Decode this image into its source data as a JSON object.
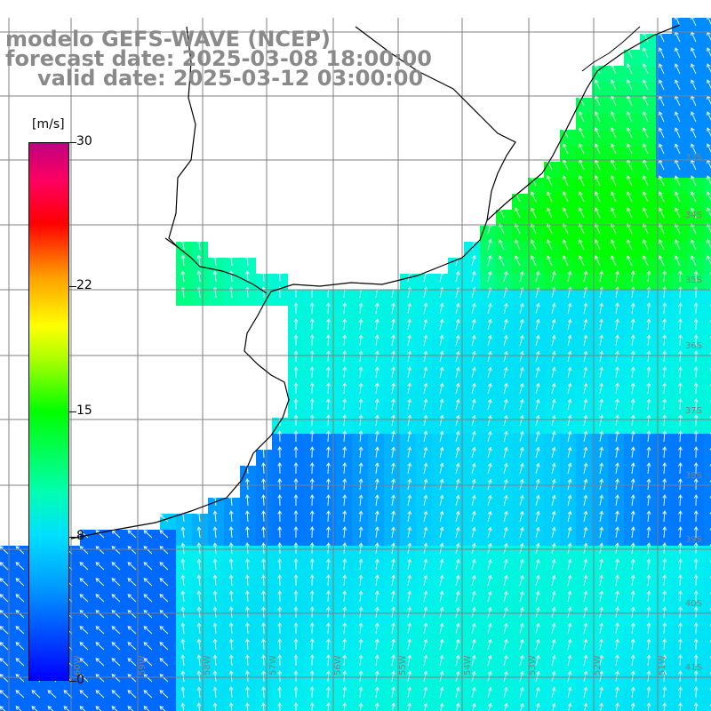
{
  "header": {
    "model_line": "modelo GEFS-WAVE (NCEP)",
    "forecast_line": "forecast date: 2025-03-08 18:00:00",
    "valid_line": "valid date: 2025-03-12 03:00:00"
  },
  "colorbar": {
    "unit": "[m/s]",
    "ticks": [
      {
        "label": "30",
        "value": 30
      },
      {
        "label": "22",
        "value": 22
      },
      {
        "label": "15",
        "value": 15
      },
      {
        "label": "8",
        "value": 8
      },
      {
        "label": "0",
        "value": 0
      }
    ],
    "range": [
      0,
      30
    ]
  },
  "map": {
    "lat_labels": [
      "33S",
      "34S",
      "35S",
      "36S",
      "37S",
      "38S",
      "39S",
      "40S",
      "41S"
    ],
    "lon_labels": [
      "60W",
      "59W",
      "58W",
      "57W",
      "56W",
      "55W",
      "54W",
      "53W",
      "52W",
      "51W"
    ],
    "colors": {
      "land": "#ffffff",
      "coast": "#000000",
      "grid": "#808080",
      "arrow": "#ffffff"
    }
  }
}
